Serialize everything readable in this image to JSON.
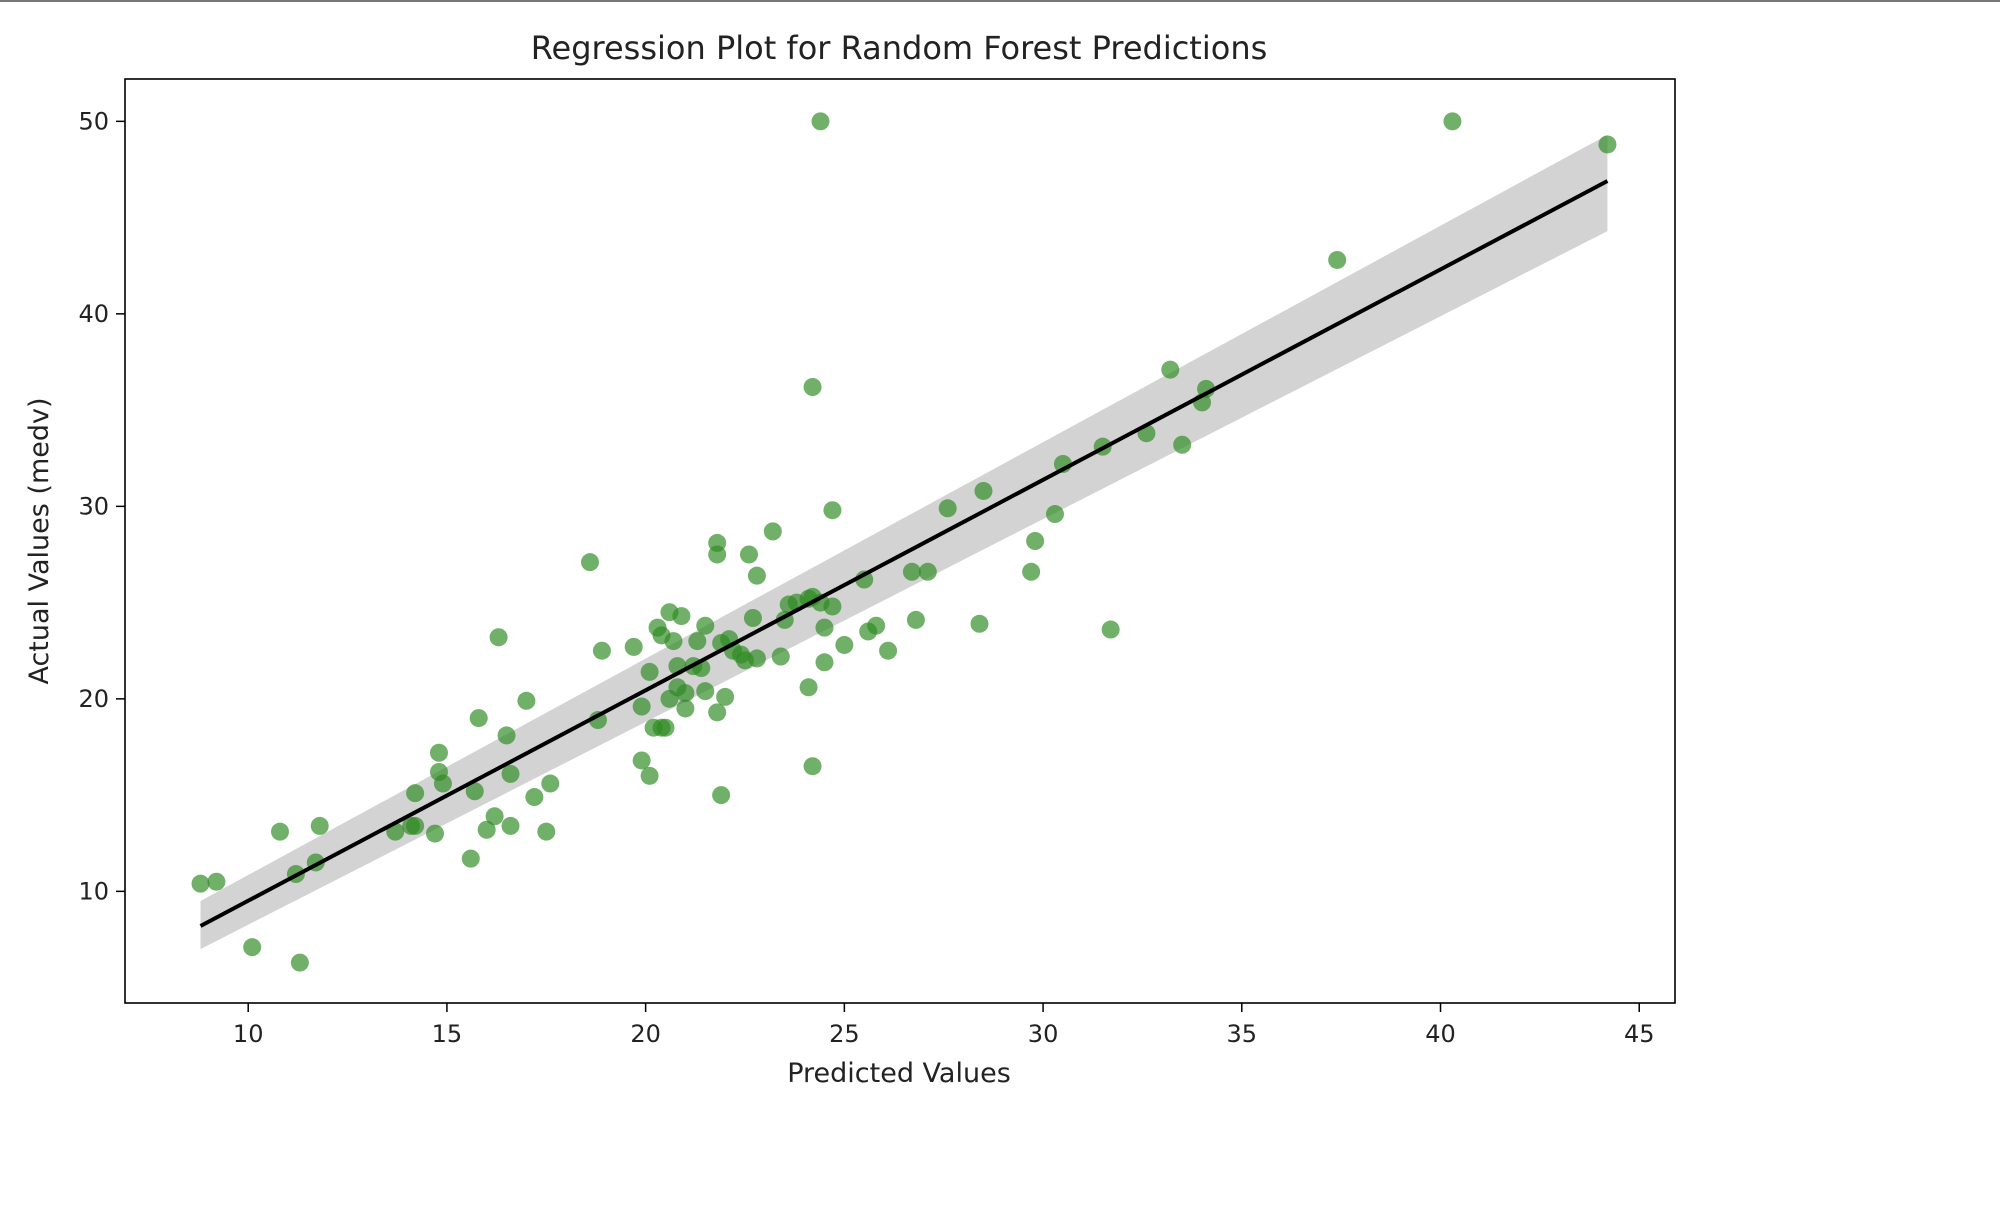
{
  "chart_data": {
    "type": "scatter",
    "title": "Regression Plot for Random Forest Predictions",
    "xlabel": "Predicted Values",
    "ylabel": "Actual Values (medv)",
    "xlim": [
      6.9,
      45.9
    ],
    "ylim": [
      4.2,
      52.2
    ],
    "xticks": [
      10,
      15,
      20,
      25,
      30,
      35,
      40,
      45
    ],
    "yticks": [
      10,
      20,
      30,
      40,
      50
    ],
    "grid": false,
    "point_color": "#2e8b22",
    "line_color": "#000000",
    "band_color": "#d3d3d3",
    "regression_line": {
      "x": [
        8.8,
        44.2
      ],
      "y": [
        8.2,
        46.9
      ]
    },
    "confidence_band": {
      "x": [
        8.8,
        44.2
      ],
      "upper": [
        9.5,
        49.3
      ],
      "lower": [
        7.0,
        44.3
      ]
    },
    "points": [
      [
        8.8,
        10.4
      ],
      [
        9.2,
        10.5
      ],
      [
        10.1,
        7.1
      ],
      [
        10.8,
        13.1
      ],
      [
        11.2,
        10.9
      ],
      [
        11.3,
        6.3
      ],
      [
        11.7,
        11.5
      ],
      [
        11.8,
        13.4
      ],
      [
        13.7,
        13.1
      ],
      [
        14.1,
        13.4
      ],
      [
        14.2,
        15.1
      ],
      [
        14.2,
        13.4
      ],
      [
        14.7,
        13.0
      ],
      [
        14.8,
        16.2
      ],
      [
        14.8,
        17.2
      ],
      [
        14.9,
        15.6
      ],
      [
        15.6,
        11.7
      ],
      [
        15.7,
        15.2
      ],
      [
        15.8,
        19.0
      ],
      [
        16.0,
        13.2
      ],
      [
        16.2,
        13.9
      ],
      [
        16.3,
        23.2
      ],
      [
        16.5,
        18.1
      ],
      [
        16.6,
        16.1
      ],
      [
        16.6,
        13.4
      ],
      [
        17.0,
        19.9
      ],
      [
        17.2,
        14.9
      ],
      [
        17.5,
        13.1
      ],
      [
        17.6,
        15.6
      ],
      [
        18.6,
        27.1
      ],
      [
        18.8,
        18.9
      ],
      [
        18.9,
        22.5
      ],
      [
        19.7,
        22.7
      ],
      [
        19.9,
        16.8
      ],
      [
        19.9,
        19.6
      ],
      [
        20.1,
        16.0
      ],
      [
        20.1,
        21.4
      ],
      [
        20.2,
        18.5
      ],
      [
        20.3,
        23.7
      ],
      [
        20.4,
        23.3
      ],
      [
        20.4,
        18.5
      ],
      [
        20.5,
        18.5
      ],
      [
        20.6,
        20.0
      ],
      [
        20.6,
        24.5
      ],
      [
        20.7,
        23.0
      ],
      [
        20.8,
        21.7
      ],
      [
        20.8,
        20.6
      ],
      [
        20.9,
        24.3
      ],
      [
        21.0,
        20.3
      ],
      [
        21.0,
        19.5
      ],
      [
        21.2,
        21.7
      ],
      [
        21.3,
        23.0
      ],
      [
        21.4,
        21.6
      ],
      [
        21.5,
        20.4
      ],
      [
        21.5,
        23.8
      ],
      [
        21.8,
        27.5
      ],
      [
        21.8,
        28.1
      ],
      [
        21.8,
        19.3
      ],
      [
        21.9,
        15.0
      ],
      [
        21.9,
        22.9
      ],
      [
        22.0,
        20.1
      ],
      [
        22.1,
        23.1
      ],
      [
        22.2,
        22.5
      ],
      [
        22.4,
        22.3
      ],
      [
        22.5,
        22.0
      ],
      [
        22.6,
        27.5
      ],
      [
        22.7,
        24.2
      ],
      [
        22.8,
        22.1
      ],
      [
        22.8,
        26.4
      ],
      [
        23.2,
        28.7
      ],
      [
        23.4,
        22.2
      ],
      [
        23.5,
        24.1
      ],
      [
        23.6,
        24.9
      ],
      [
        23.8,
        25.0
      ],
      [
        24.1,
        20.6
      ],
      [
        24.1,
        25.2
      ],
      [
        24.2,
        25.3
      ],
      [
        24.2,
        36.2
      ],
      [
        24.2,
        16.5
      ],
      [
        24.4,
        25.0
      ],
      [
        24.4,
        50.0
      ],
      [
        24.5,
        21.9
      ],
      [
        24.5,
        23.7
      ],
      [
        24.7,
        24.8
      ],
      [
        24.7,
        29.8
      ],
      [
        25.0,
        22.8
      ],
      [
        25.5,
        26.2
      ],
      [
        25.6,
        23.5
      ],
      [
        25.8,
        23.8
      ],
      [
        26.1,
        22.5
      ],
      [
        26.7,
        26.6
      ],
      [
        26.8,
        24.1
      ],
      [
        27.1,
        26.6
      ],
      [
        27.6,
        29.9
      ],
      [
        28.4,
        23.9
      ],
      [
        28.5,
        30.8
      ],
      [
        29.7,
        26.6
      ],
      [
        29.8,
        28.2
      ],
      [
        30.3,
        29.6
      ],
      [
        30.5,
        32.2
      ],
      [
        31.5,
        33.1
      ],
      [
        31.7,
        23.6
      ],
      [
        32.6,
        33.8
      ],
      [
        33.2,
        37.1
      ],
      [
        33.5,
        33.2
      ],
      [
        34.0,
        35.4
      ],
      [
        34.1,
        36.1
      ],
      [
        37.4,
        42.8
      ],
      [
        40.3,
        50.0
      ],
      [
        44.2,
        48.8
      ]
    ]
  }
}
